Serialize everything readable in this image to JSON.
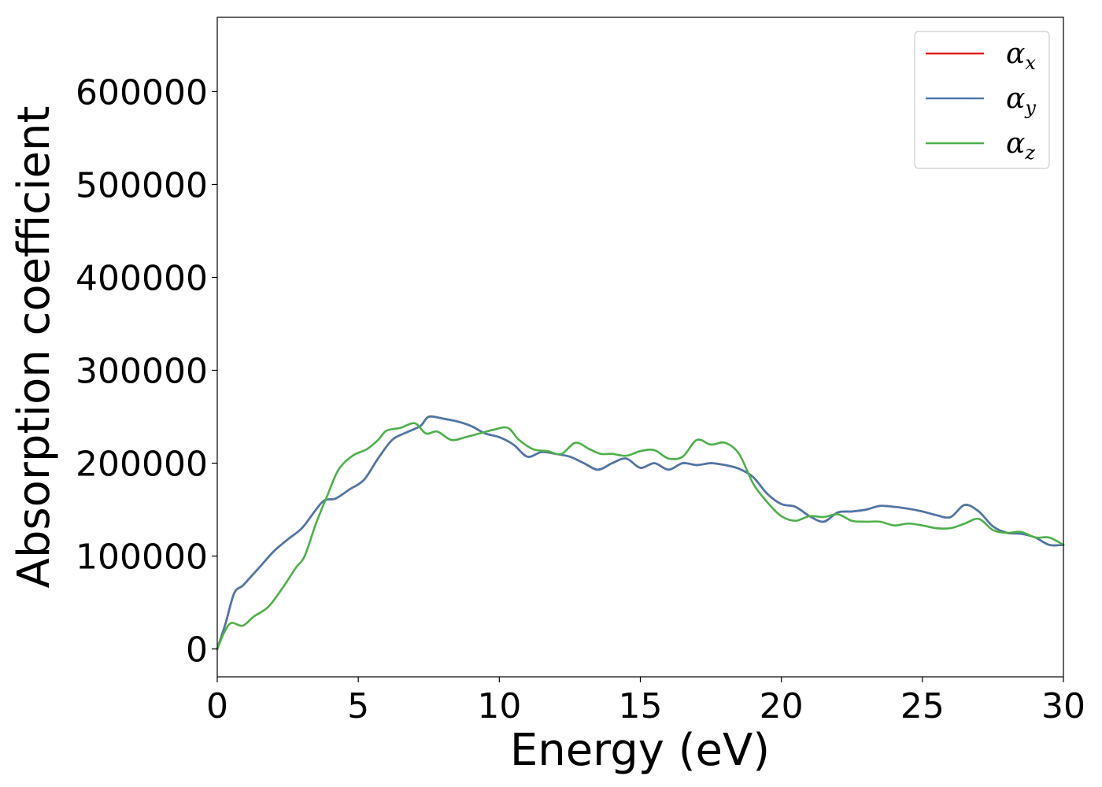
{
  "chart_data": {
    "type": "line",
    "title": "",
    "xlabel": "Energy (eV)",
    "ylabel": "Absorption coefficient",
    "xlim": [
      0,
      30
    ],
    "ylim": [
      -30000,
      680000
    ],
    "xticks": [
      0,
      5,
      10,
      15,
      20,
      25,
      30
    ],
    "xtick_labels": [
      "0",
      "5",
      "10",
      "15",
      "20",
      "25",
      "30"
    ],
    "yticks": [
      0,
      100000,
      200000,
      300000,
      400000,
      500000,
      600000
    ],
    "ytick_labels": [
      "0",
      "100000",
      "200000",
      "300000",
      "400000",
      "500000",
      "600000"
    ],
    "grid": false,
    "legend_position": "top-right",
    "series": [
      {
        "name": "αx",
        "name_base": "α",
        "name_sub": "x",
        "color": "#e41a1c",
        "x": [
          0,
          0.3,
          0.6,
          0.9,
          1.2,
          1.5,
          2.0,
          2.5,
          3.0,
          3.5,
          3.8,
          4.2,
          4.7,
          5.2,
          5.7,
          6.2,
          6.7,
          7.2,
          7.5,
          8.0,
          8.5,
          9.0,
          9.5,
          10.0,
          10.5,
          11.0,
          11.5,
          12.0,
          12.5,
          13.0,
          13.5,
          14.0,
          14.5,
          15.0,
          15.5,
          16.0,
          16.5,
          17.0,
          17.5,
          18.0,
          18.5,
          19.0,
          19.5,
          20.0,
          20.5,
          21.0,
          21.5,
          22.0,
          22.5,
          23.0,
          23.5,
          24.0,
          24.5,
          25.0,
          25.5,
          26.0,
          26.5,
          27.0,
          27.5,
          28.0,
          28.5,
          29.0,
          29.5,
          30.0
        ],
        "y": [
          0,
          28000,
          60000,
          68000,
          78000,
          88000,
          105000,
          118000,
          130000,
          150000,
          160000,
          162000,
          172000,
          182000,
          205000,
          225000,
          233000,
          240000,
          250000,
          248000,
          245000,
          240000,
          232000,
          228000,
          220000,
          207000,
          212000,
          210000,
          207000,
          200000,
          193000,
          200000,
          205000,
          195000,
          200000,
          193000,
          200000,
          198000,
          200000,
          198000,
          194000,
          185000,
          167000,
          156000,
          153000,
          143000,
          137000,
          147000,
          148000,
          150000,
          154000,
          153000,
          151000,
          148000,
          144000,
          142000,
          155000,
          148000,
          132000,
          125000,
          124000,
          120000,
          112000,
          112000
        ]
      },
      {
        "name": "αy",
        "name_base": "α",
        "name_sub": "y",
        "color": "#4a78a8",
        "x": [
          0,
          0.3,
          0.6,
          0.9,
          1.2,
          1.5,
          2.0,
          2.5,
          3.0,
          3.5,
          3.8,
          4.2,
          4.7,
          5.2,
          5.7,
          6.2,
          6.7,
          7.2,
          7.5,
          8.0,
          8.5,
          9.0,
          9.5,
          10.0,
          10.5,
          11.0,
          11.5,
          12.0,
          12.5,
          13.0,
          13.5,
          14.0,
          14.5,
          15.0,
          15.5,
          16.0,
          16.5,
          17.0,
          17.5,
          18.0,
          18.5,
          19.0,
          19.5,
          20.0,
          20.5,
          21.0,
          21.5,
          22.0,
          22.5,
          23.0,
          23.5,
          24.0,
          24.5,
          25.0,
          25.5,
          26.0,
          26.5,
          27.0,
          27.5,
          28.0,
          28.5,
          29.0,
          29.5,
          30.0
        ],
        "y": [
          0,
          28000,
          60000,
          68000,
          78000,
          88000,
          105000,
          118000,
          130000,
          150000,
          160000,
          162000,
          172000,
          182000,
          205000,
          225000,
          233000,
          240000,
          250000,
          248000,
          245000,
          240000,
          232000,
          228000,
          220000,
          207000,
          212000,
          210000,
          207000,
          200000,
          193000,
          200000,
          205000,
          195000,
          200000,
          193000,
          200000,
          198000,
          200000,
          198000,
          194000,
          185000,
          167000,
          156000,
          153000,
          143000,
          137000,
          147000,
          148000,
          150000,
          154000,
          153000,
          151000,
          148000,
          144000,
          142000,
          155000,
          148000,
          132000,
          125000,
          124000,
          120000,
          112000,
          112000
        ]
      },
      {
        "name": "αz",
        "name_base": "α",
        "name_sub": "z",
        "color": "#4daf4a",
        "x": [
          0,
          0.25,
          0.5,
          0.9,
          1.3,
          1.8,
          2.3,
          2.8,
          3.1,
          3.5,
          3.9,
          4.3,
          4.8,
          5.3,
          5.7,
          6.0,
          6.5,
          7.0,
          7.4,
          7.8,
          8.3,
          8.8,
          9.3,
          9.8,
          10.3,
          10.7,
          11.2,
          11.7,
          12.2,
          12.7,
          13.2,
          13.6,
          14.0,
          14.5,
          15.0,
          15.5,
          16.0,
          16.5,
          17.0,
          17.5,
          18.0,
          18.5,
          19.0,
          19.5,
          20.0,
          20.5,
          21.0,
          21.5,
          22.0,
          22.5,
          23.0,
          23.5,
          24.0,
          24.5,
          25.0,
          25.5,
          26.0,
          26.5,
          27.0,
          27.5,
          28.0,
          28.5,
          29.0,
          29.5,
          30.0
        ],
        "y": [
          0,
          18000,
          28000,
          25000,
          35000,
          45000,
          65000,
          88000,
          100000,
          135000,
          165000,
          193000,
          208000,
          215000,
          225000,
          235000,
          238000,
          243000,
          232000,
          234000,
          225000,
          228000,
          232000,
          236000,
          238000,
          225000,
          215000,
          213000,
          210000,
          222000,
          215000,
          210000,
          210000,
          208000,
          213000,
          214000,
          205000,
          207000,
          225000,
          220000,
          222000,
          210000,
          178000,
          158000,
          143000,
          138000,
          143000,
          142000,
          145000,
          138000,
          137000,
          137000,
          133000,
          135000,
          133000,
          130000,
          130000,
          135000,
          140000,
          128000,
          125000,
          126000,
          120000,
          120000,
          112000
        ]
      }
    ]
  }
}
